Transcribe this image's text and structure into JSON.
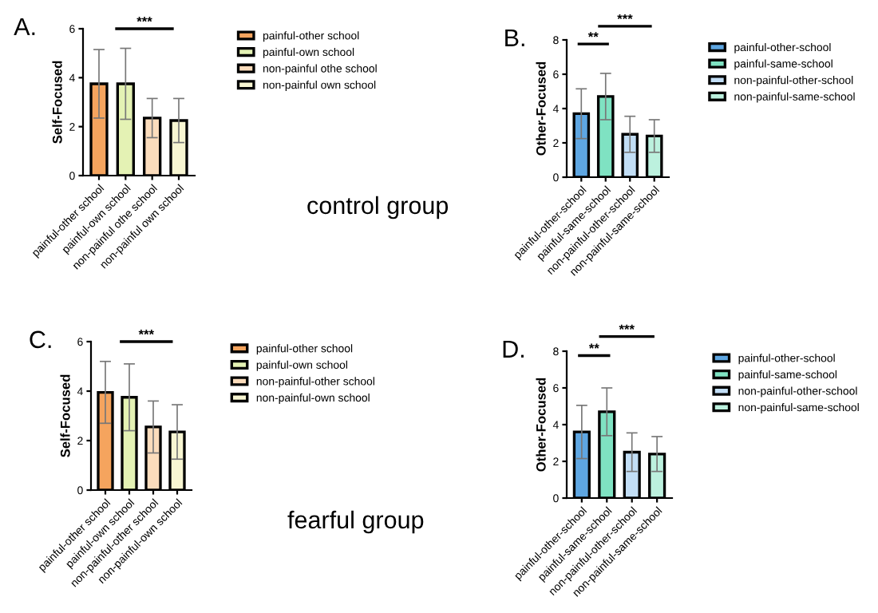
{
  "chart_data": [
    {
      "type": "bar",
      "title": "A.",
      "ylabel": "Self-Focused",
      "categories": [
        "painful-other school",
        "painful-own school",
        "non-painful othe school",
        "non-painful own school"
      ],
      "ylim": [
        0,
        6
      ],
      "yticks": [
        0,
        2,
        4,
        6
      ],
      "legend": "right",
      "annotations": [
        "***",
        "control group"
      ],
      "series": [
        {
          "name": "painful-other school",
          "color": "#f5a45e",
          "values": [
            3.75,
            null,
            null,
            null
          ],
          "errors": [
            1.4,
            null,
            null,
            null
          ]
        },
        {
          "name": "painful-own school",
          "color": "#e4f2b4",
          "values": [
            null,
            3.75,
            null,
            null
          ],
          "errors": [
            null,
            1.45,
            null,
            null
          ]
        },
        {
          "name": "non-painful othe school",
          "color": "#fbdcbc",
          "values": [
            null,
            null,
            2.35,
            null
          ],
          "errors": [
            null,
            null,
            0.8,
            null
          ]
        },
        {
          "name": "non-painful own school",
          "color": "#f8f6d2",
          "values": [
            null,
            null,
            null,
            2.25
          ],
          "errors": [
            null,
            null,
            null,
            0.9
          ]
        }
      ]
    },
    {
      "type": "bar",
      "title": "B.",
      "ylabel": "Other-Focused",
      "categories": [
        "painful-other-school",
        "painful-same-school",
        "non-painful-other-school",
        "non-painful-same-school"
      ],
      "ylim": [
        0,
        8
      ],
      "yticks": [
        0,
        2,
        4,
        6,
        8
      ],
      "legend": "right",
      "annotations": [
        "**",
        "***"
      ],
      "series": [
        {
          "name": "painful-other-school",
          "color": "#5ea6e2",
          "values": [
            3.7,
            null,
            null,
            null
          ],
          "errors": [
            1.45,
            null,
            null,
            null
          ]
        },
        {
          "name": "painful-same-school",
          "color": "#7fe2c2",
          "values": [
            null,
            4.7,
            null,
            null
          ],
          "errors": [
            null,
            1.35,
            null,
            null
          ]
        },
        {
          "name": "non-painful-other-school",
          "color": "#c2def6",
          "values": [
            null,
            null,
            2.5,
            null
          ],
          "errors": [
            null,
            null,
            1.05,
            null
          ]
        },
        {
          "name": "non-painful-same-school",
          "color": "#bcf1de",
          "values": [
            null,
            null,
            null,
            2.4
          ],
          "errors": [
            null,
            null,
            null,
            0.95
          ]
        }
      ]
    },
    {
      "type": "bar",
      "title": "C.",
      "ylabel": "Self-Focused",
      "categories": [
        "painful-other school",
        "painful-own school",
        "non-painful-other school",
        "non-painful-own school"
      ],
      "ylim": [
        0,
        6
      ],
      "yticks": [
        0,
        2,
        4,
        6
      ],
      "legend": "right",
      "annotations": [
        "***",
        "fearful group"
      ],
      "series": [
        {
          "name": "painful-other school",
          "color": "#f5a45e",
          "values": [
            3.95,
            null,
            null,
            null
          ],
          "errors": [
            1.25,
            null,
            null,
            null
          ]
        },
        {
          "name": "painful-own school",
          "color": "#e4f2b4",
          "values": [
            null,
            3.75,
            null,
            null
          ],
          "errors": [
            null,
            1.35,
            null,
            null
          ]
        },
        {
          "name": "non-painful-other school",
          "color": "#fbdcbc",
          "values": [
            null,
            null,
            2.55,
            null
          ],
          "errors": [
            null,
            null,
            1.05,
            null
          ]
        },
        {
          "name": "non-painful-own school",
          "color": "#f8f6d2",
          "values": [
            null,
            null,
            null,
            2.35
          ],
          "errors": [
            null,
            null,
            null,
            1.1
          ]
        }
      ]
    },
    {
      "type": "bar",
      "title": "D.",
      "ylabel": "Other-Focused",
      "categories": [
        "painful-other-school",
        "painful-same-school",
        "non-painful-other-school",
        "non-painful-same-school"
      ],
      "ylim": [
        0,
        8
      ],
      "yticks": [
        0,
        2,
        4,
        6,
        8
      ],
      "legend": "right",
      "annotations": [
        "**",
        "***"
      ],
      "series": [
        {
          "name": "painful-other-school",
          "color": "#5ea6e2",
          "values": [
            3.6,
            null,
            null,
            null
          ],
          "errors": [
            1.45,
            null,
            null,
            null
          ]
        },
        {
          "name": "painful-same-school",
          "color": "#7fe2c2",
          "values": [
            null,
            4.7,
            null,
            null
          ],
          "errors": [
            null,
            1.3,
            null,
            null
          ]
        },
        {
          "name": "non-painful-other-school",
          "color": "#c2def6",
          "values": [
            null,
            null,
            2.5,
            null
          ],
          "errors": [
            null,
            null,
            1.05,
            null
          ]
        },
        {
          "name": "non-painful-same-school",
          "color": "#bcf1de",
          "values": [
            null,
            null,
            null,
            2.4
          ],
          "errors": [
            null,
            null,
            null,
            0.95
          ]
        }
      ]
    }
  ]
}
